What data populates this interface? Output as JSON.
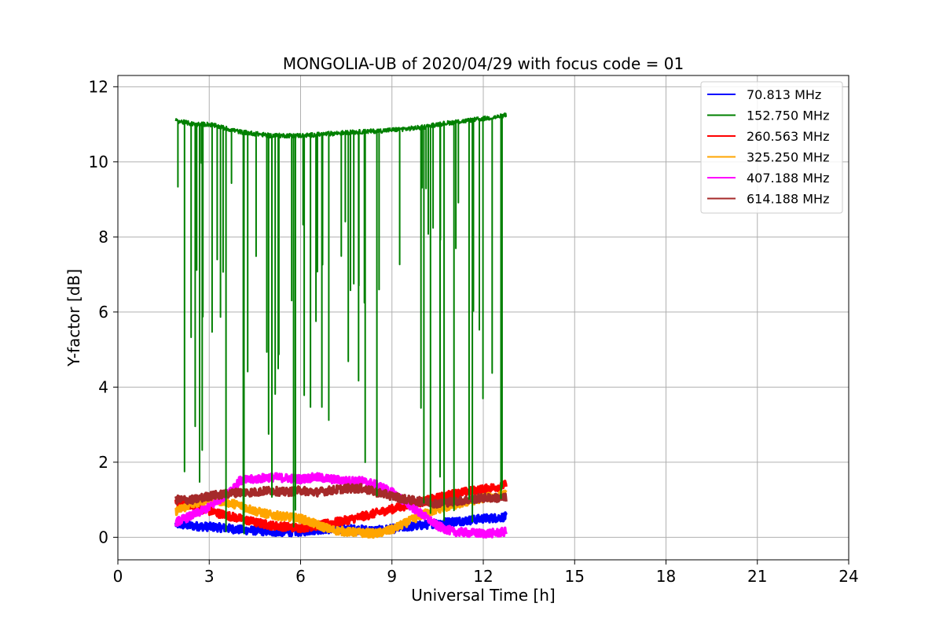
{
  "chart_data": {
    "type": "line",
    "title": "MONGOLIA-UB of 2020/04/29 with focus code = 01",
    "xlabel": "Universal Time [h]",
    "ylabel": "Y-factor [dB]",
    "xlim": [
      0,
      24
    ],
    "ylim": [
      -0.6,
      12.3
    ],
    "xticks": [
      "0",
      "3",
      "6",
      "9",
      "12",
      "15",
      "18",
      "21",
      "24"
    ],
    "yticks": [
      "0",
      "2",
      "4",
      "6",
      "8",
      "10",
      "12"
    ],
    "grid": true,
    "legend_position": "top-right",
    "series": [
      {
        "name": " 70.813 MHz",
        "color": "#0000ff",
        "x": [
          1.9,
          2.5,
          3.0,
          3.5,
          4.0,
          4.5,
          5.0,
          5.5,
          6.0,
          6.5,
          7.0,
          7.5,
          8.0,
          8.5,
          9.0,
          9.5,
          10.0,
          10.5,
          11.0,
          11.5,
          12.0,
          12.5,
          12.75
        ],
        "y": [
          0.35,
          0.3,
          0.28,
          0.25,
          0.2,
          0.18,
          0.15,
          0.14,
          0.15,
          0.2,
          0.22,
          0.22,
          0.2,
          0.18,
          0.22,
          0.28,
          0.32,
          0.38,
          0.42,
          0.45,
          0.5,
          0.52,
          0.55
        ]
      },
      {
        "name": "152.750 MHz",
        "color": "#008000",
        "x": [
          1.9,
          2.5,
          3.0,
          3.5,
          4.0,
          4.5,
          5.0,
          5.5,
          6.0,
          6.5,
          7.0,
          7.5,
          8.0,
          8.5,
          9.0,
          9.5,
          10.0,
          10.5,
          11.0,
          11.5,
          12.0,
          12.5,
          12.75
        ],
        "y": [
          11.1,
          11.0,
          11.0,
          10.9,
          10.8,
          10.75,
          10.7,
          10.7,
          10.7,
          10.72,
          10.75,
          10.78,
          10.8,
          10.82,
          10.85,
          10.88,
          10.92,
          11.0,
          11.05,
          11.1,
          11.15,
          11.2,
          11.25
        ]
      },
      {
        "name": "260.563 MHz",
        "color": "#ff0000",
        "x": [
          1.9,
          2.5,
          3.0,
          3.5,
          4.0,
          4.5,
          5.0,
          5.5,
          6.0,
          6.5,
          7.0,
          7.5,
          8.0,
          8.5,
          9.0,
          9.5,
          10.0,
          10.5,
          11.0,
          11.5,
          12.0,
          12.5,
          12.75
        ],
        "y": [
          0.9,
          0.85,
          0.7,
          0.6,
          0.5,
          0.4,
          0.32,
          0.28,
          0.25,
          0.3,
          0.38,
          0.45,
          0.55,
          0.65,
          0.75,
          0.85,
          0.95,
          1.05,
          1.15,
          1.22,
          1.28,
          1.35,
          1.4
        ]
      },
      {
        "name": "325.250 MHz",
        "color": "#ffa500",
        "x": [
          1.9,
          2.5,
          3.0,
          3.5,
          4.0,
          4.5,
          5.0,
          5.5,
          6.0,
          6.5,
          7.0,
          7.5,
          8.0,
          8.5,
          9.0,
          9.5,
          10.0,
          10.5,
          11.0,
          11.5,
          12.0,
          12.5,
          12.75
        ],
        "y": [
          0.7,
          0.9,
          1.0,
          0.95,
          0.85,
          0.7,
          0.6,
          0.55,
          0.5,
          0.35,
          0.2,
          0.15,
          0.12,
          0.1,
          0.2,
          0.4,
          0.6,
          0.75,
          0.85,
          0.95,
          1.05,
          1.1,
          1.15
        ]
      },
      {
        "name": "407.188 MHz",
        "color": "#ff00ff",
        "x": [
          1.9,
          2.5,
          3.0,
          3.5,
          4.0,
          4.5,
          5.0,
          5.5,
          6.0,
          6.5,
          7.0,
          7.5,
          8.0,
          8.5,
          9.0,
          9.5,
          10.0,
          10.5,
          11.0,
          11.5,
          12.0,
          12.5,
          12.75
        ],
        "y": [
          0.4,
          0.6,
          0.8,
          1.1,
          1.5,
          1.55,
          1.6,
          1.58,
          1.55,
          1.6,
          1.55,
          1.5,
          1.5,
          1.4,
          1.2,
          0.9,
          0.6,
          0.3,
          0.15,
          0.12,
          0.1,
          0.12,
          0.15
        ]
      },
      {
        "name": "614.188 MHz",
        "color": "#a52a2a",
        "x": [
          1.9,
          2.5,
          3.0,
          3.5,
          4.0,
          4.5,
          5.0,
          5.5,
          6.0,
          6.5,
          7.0,
          7.5,
          8.0,
          8.5,
          9.0,
          9.5,
          10.0,
          10.5,
          11.0,
          11.5,
          12.0,
          12.5,
          12.75
        ],
        "y": [
          1.0,
          1.0,
          1.1,
          1.15,
          1.2,
          1.2,
          1.25,
          1.2,
          1.25,
          1.2,
          1.25,
          1.3,
          1.3,
          1.2,
          1.1,
          1.0,
          0.95,
          0.9,
          0.95,
          1.0,
          1.05,
          1.05,
          1.05
        ]
      }
    ]
  }
}
